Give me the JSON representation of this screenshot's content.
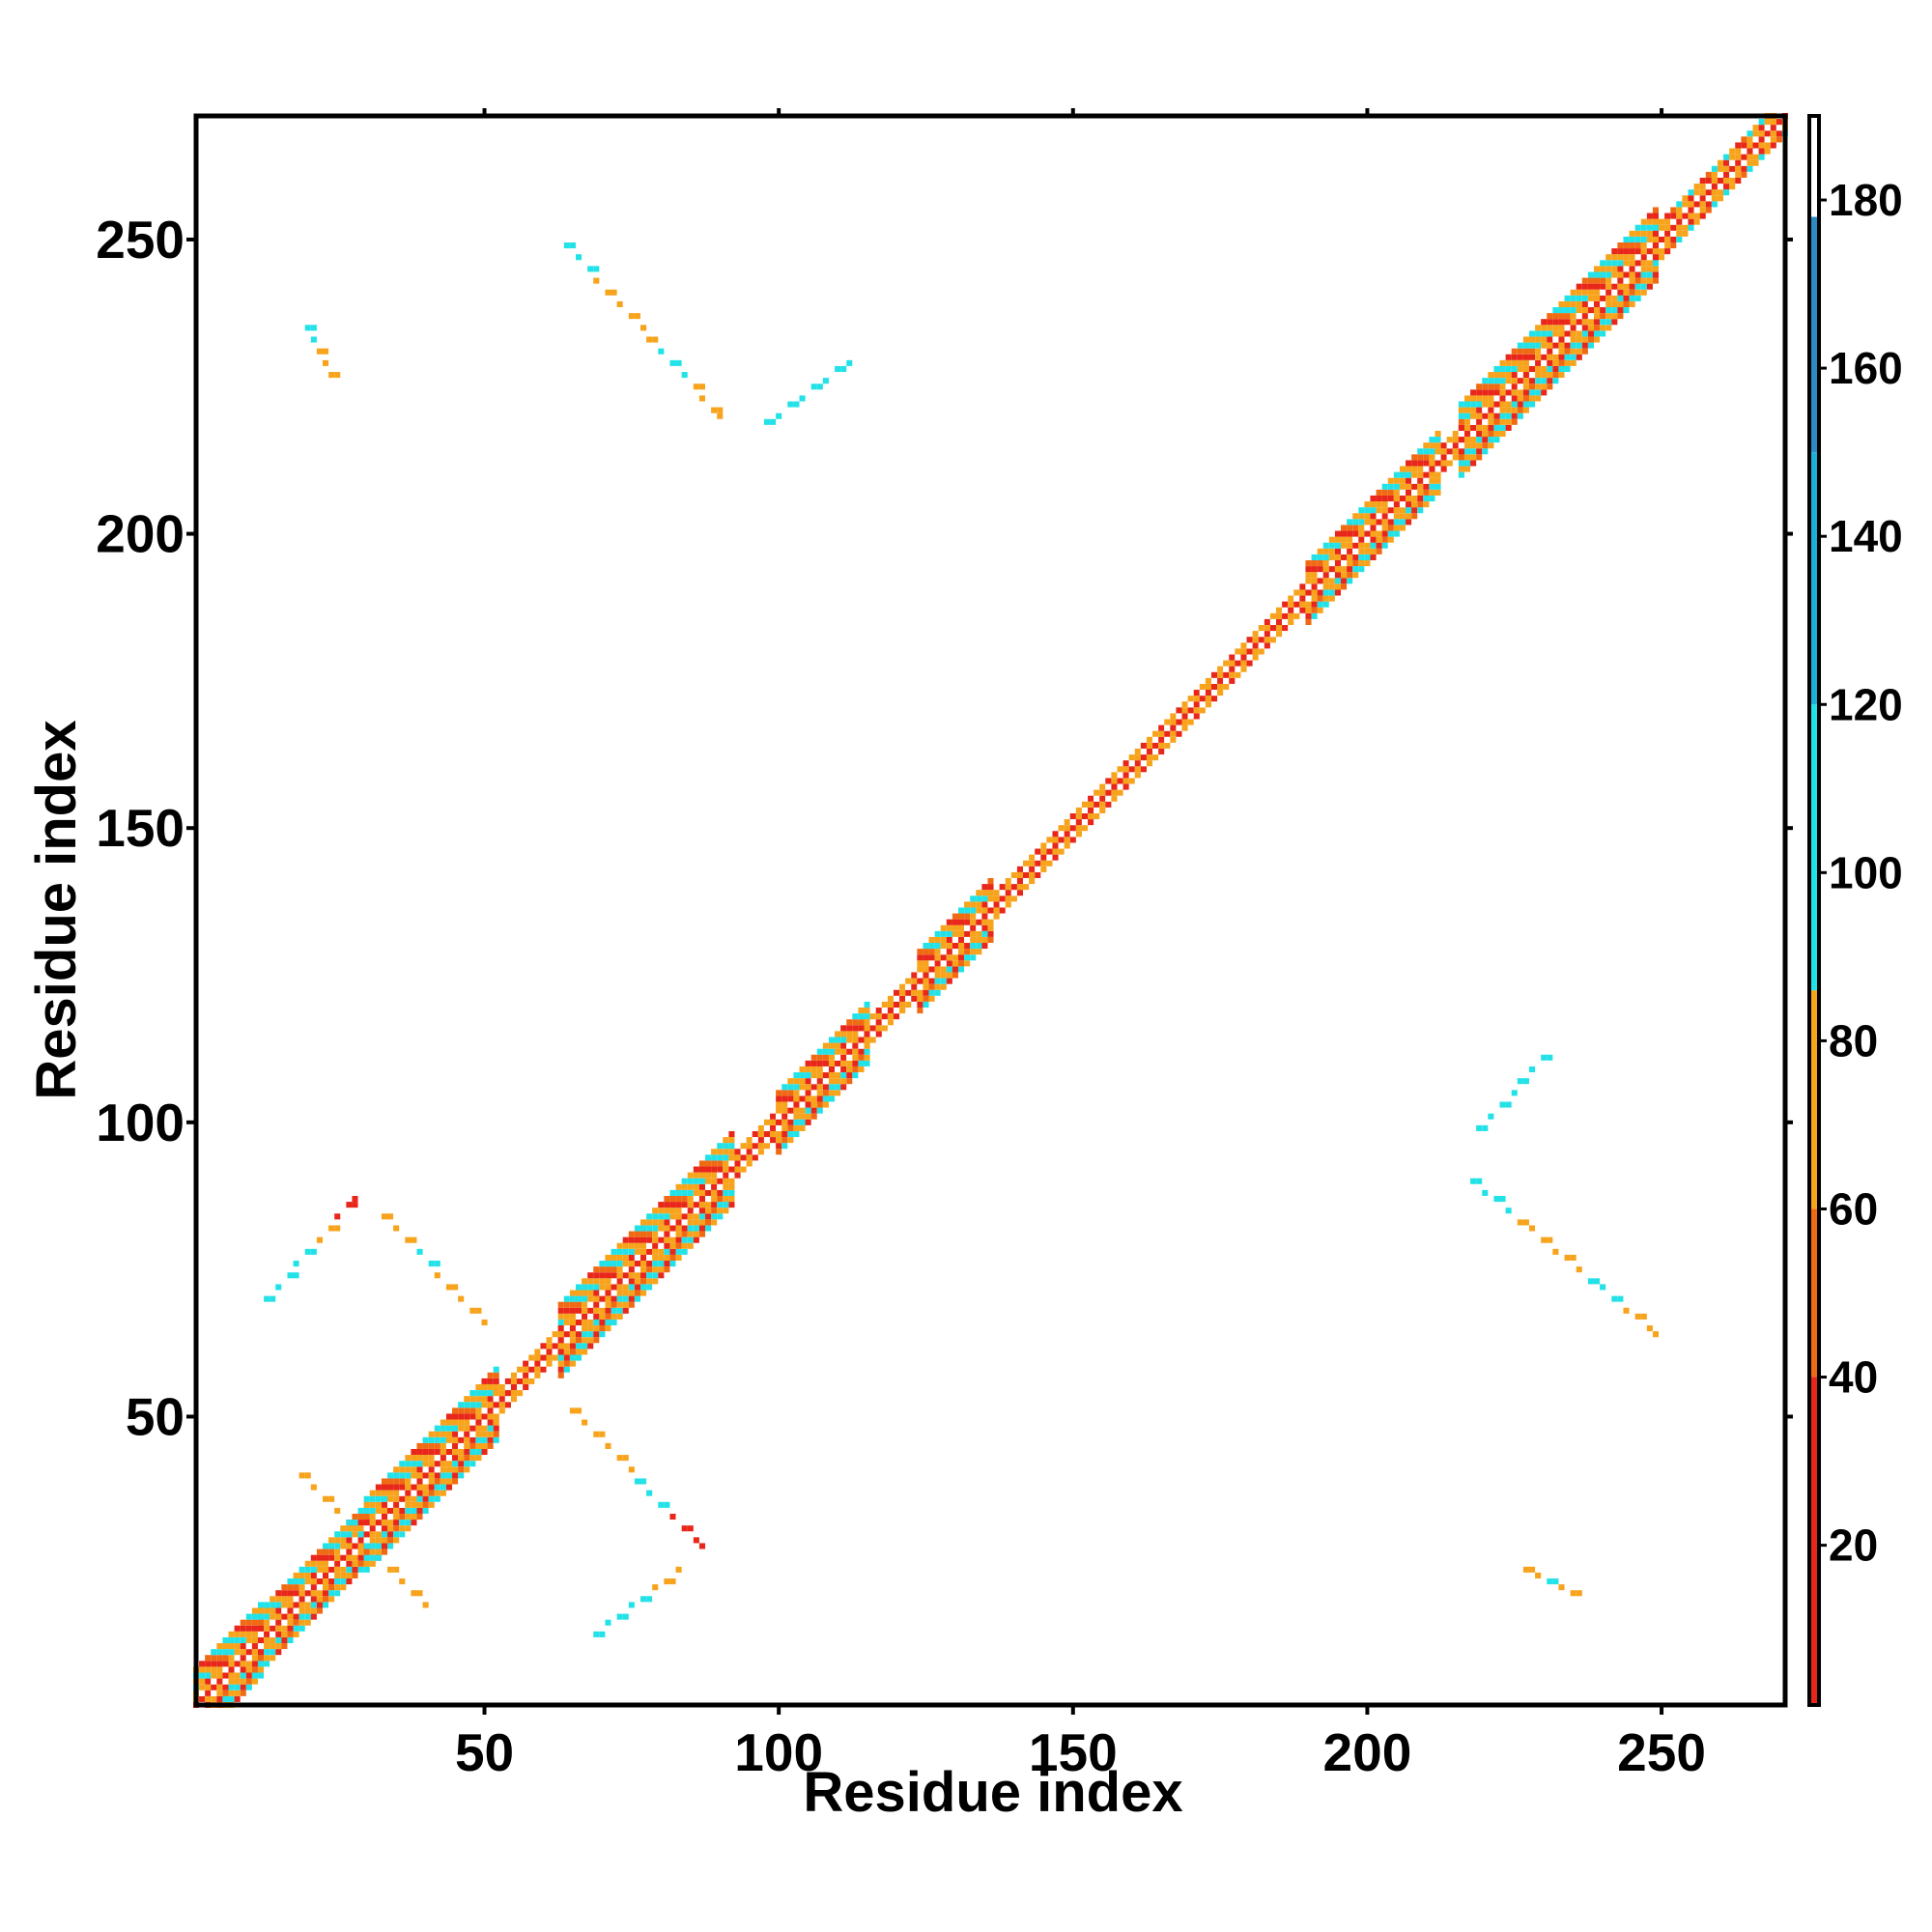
{
  "chart_data": {
    "type": "heatmap",
    "title": "",
    "xlabel": "Residue index",
    "ylabel": "Residue index",
    "xlim": [
      1,
      271
    ],
    "ylim": [
      1,
      271
    ],
    "x_ticks": [
      50,
      100,
      150,
      200,
      250
    ],
    "y_ticks": [
      50,
      100,
      150,
      200,
      250
    ],
    "colorbar": {
      "range": [
        1,
        190
      ],
      "ticks": [
        20,
        40,
        60,
        80,
        100,
        120,
        140,
        160,
        180
      ],
      "bands": [
        {
          "from": 1,
          "to": 40,
          "color": "#e8261a"
        },
        {
          "from": 40,
          "to": 60,
          "color": "#f06a14"
        },
        {
          "from": 60,
          "to": 86,
          "color": "#f7a31c"
        },
        {
          "from": 86,
          "to": 120,
          "color": "#22e2e8"
        },
        {
          "from": 120,
          "to": 150,
          "color": "#1cb0d8"
        },
        {
          "from": 150,
          "to": 178,
          "color": "#2c8ac4"
        },
        {
          "from": 178,
          "to": 190,
          "color": "#ffffff"
        }
      ]
    },
    "diagonal_band": {
      "segments": [
        {
          "from": 1,
          "to": 12,
          "halfwidth": 6
        },
        {
          "from": 12,
          "to": 30,
          "halfwidth": 5
        },
        {
          "from": 30,
          "to": 52,
          "halfwidth": 6
        },
        {
          "from": 52,
          "to": 63,
          "halfwidth": 2
        },
        {
          "from": 63,
          "to": 92,
          "halfwidth": 6
        },
        {
          "from": 92,
          "to": 100,
          "halfwidth": 2
        },
        {
          "from": 100,
          "to": 115,
          "halfwidth": 5
        },
        {
          "from": 115,
          "to": 124,
          "halfwidth": 2
        },
        {
          "from": 124,
          "to": 136,
          "halfwidth": 5
        },
        {
          "from": 136,
          "to": 190,
          "halfwidth": 2
        },
        {
          "from": 190,
          "to": 212,
          "halfwidth": 5
        },
        {
          "from": 212,
          "to": 216,
          "halfwidth": 2
        },
        {
          "from": 216,
          "to": 249,
          "halfwidth": 6
        },
        {
          "from": 249,
          "to": 271,
          "halfwidth": 3
        }
      ]
    },
    "off_diagonal_contacts": [
      {
        "x": [
          64,
          90
        ],
        "y": [
          249,
          220
        ],
        "colors": [
          "cyan",
          "orange",
          "orange",
          "cyan",
          "orange"
        ]
      },
      {
        "x": [
          20,
          24
        ],
        "y": [
          235,
          227
        ],
        "colors": [
          "cyan",
          "orange",
          "orange"
        ]
      },
      {
        "x": [
          98,
          112
        ],
        "y": [
          219,
          229
        ],
        "colors": [
          "cyan",
          "cyan"
        ]
      },
      {
        "x": [
          218,
          249
        ],
        "y": [
          90,
          64
        ],
        "colors": [
          "cyan",
          "orange",
          "orange",
          "cyan",
          "orange"
        ]
      },
      {
        "x": [
          219,
          230
        ],
        "y": [
          99,
          111
        ],
        "colors": [
          "cyan",
          "cyan"
        ]
      },
      {
        "x": [
          227,
          235
        ],
        "y": [
          24,
          20
        ],
        "colors": [
          "orange",
          "cyan",
          "orange"
        ]
      },
      {
        "x": [
          13,
          28
        ],
        "y": [
          70,
          87
        ],
        "colors": [
          "cyan",
          "cyan",
          "orange",
          "red"
        ]
      },
      {
        "x": [
          33,
          50
        ],
        "y": [
          84,
          66
        ],
        "colors": [
          "orange",
          "cyan",
          "orange",
          "orange"
        ]
      },
      {
        "x": [
          65,
          87
        ],
        "y": [
          51,
          28
        ],
        "colors": [
          "orange",
          "orange",
          "cyan",
          "red"
        ]
      },
      {
        "x": [
          69,
          83
        ],
        "y": [
          13,
          24
        ],
        "colors": [
          "cyan",
          "cyan",
          "orange"
        ]
      },
      {
        "x": [
          19,
          40
        ],
        "y": [
          40,
          18
        ],
        "colors": [
          "orange",
          "cyan",
          "orange"
        ]
      }
    ]
  }
}
